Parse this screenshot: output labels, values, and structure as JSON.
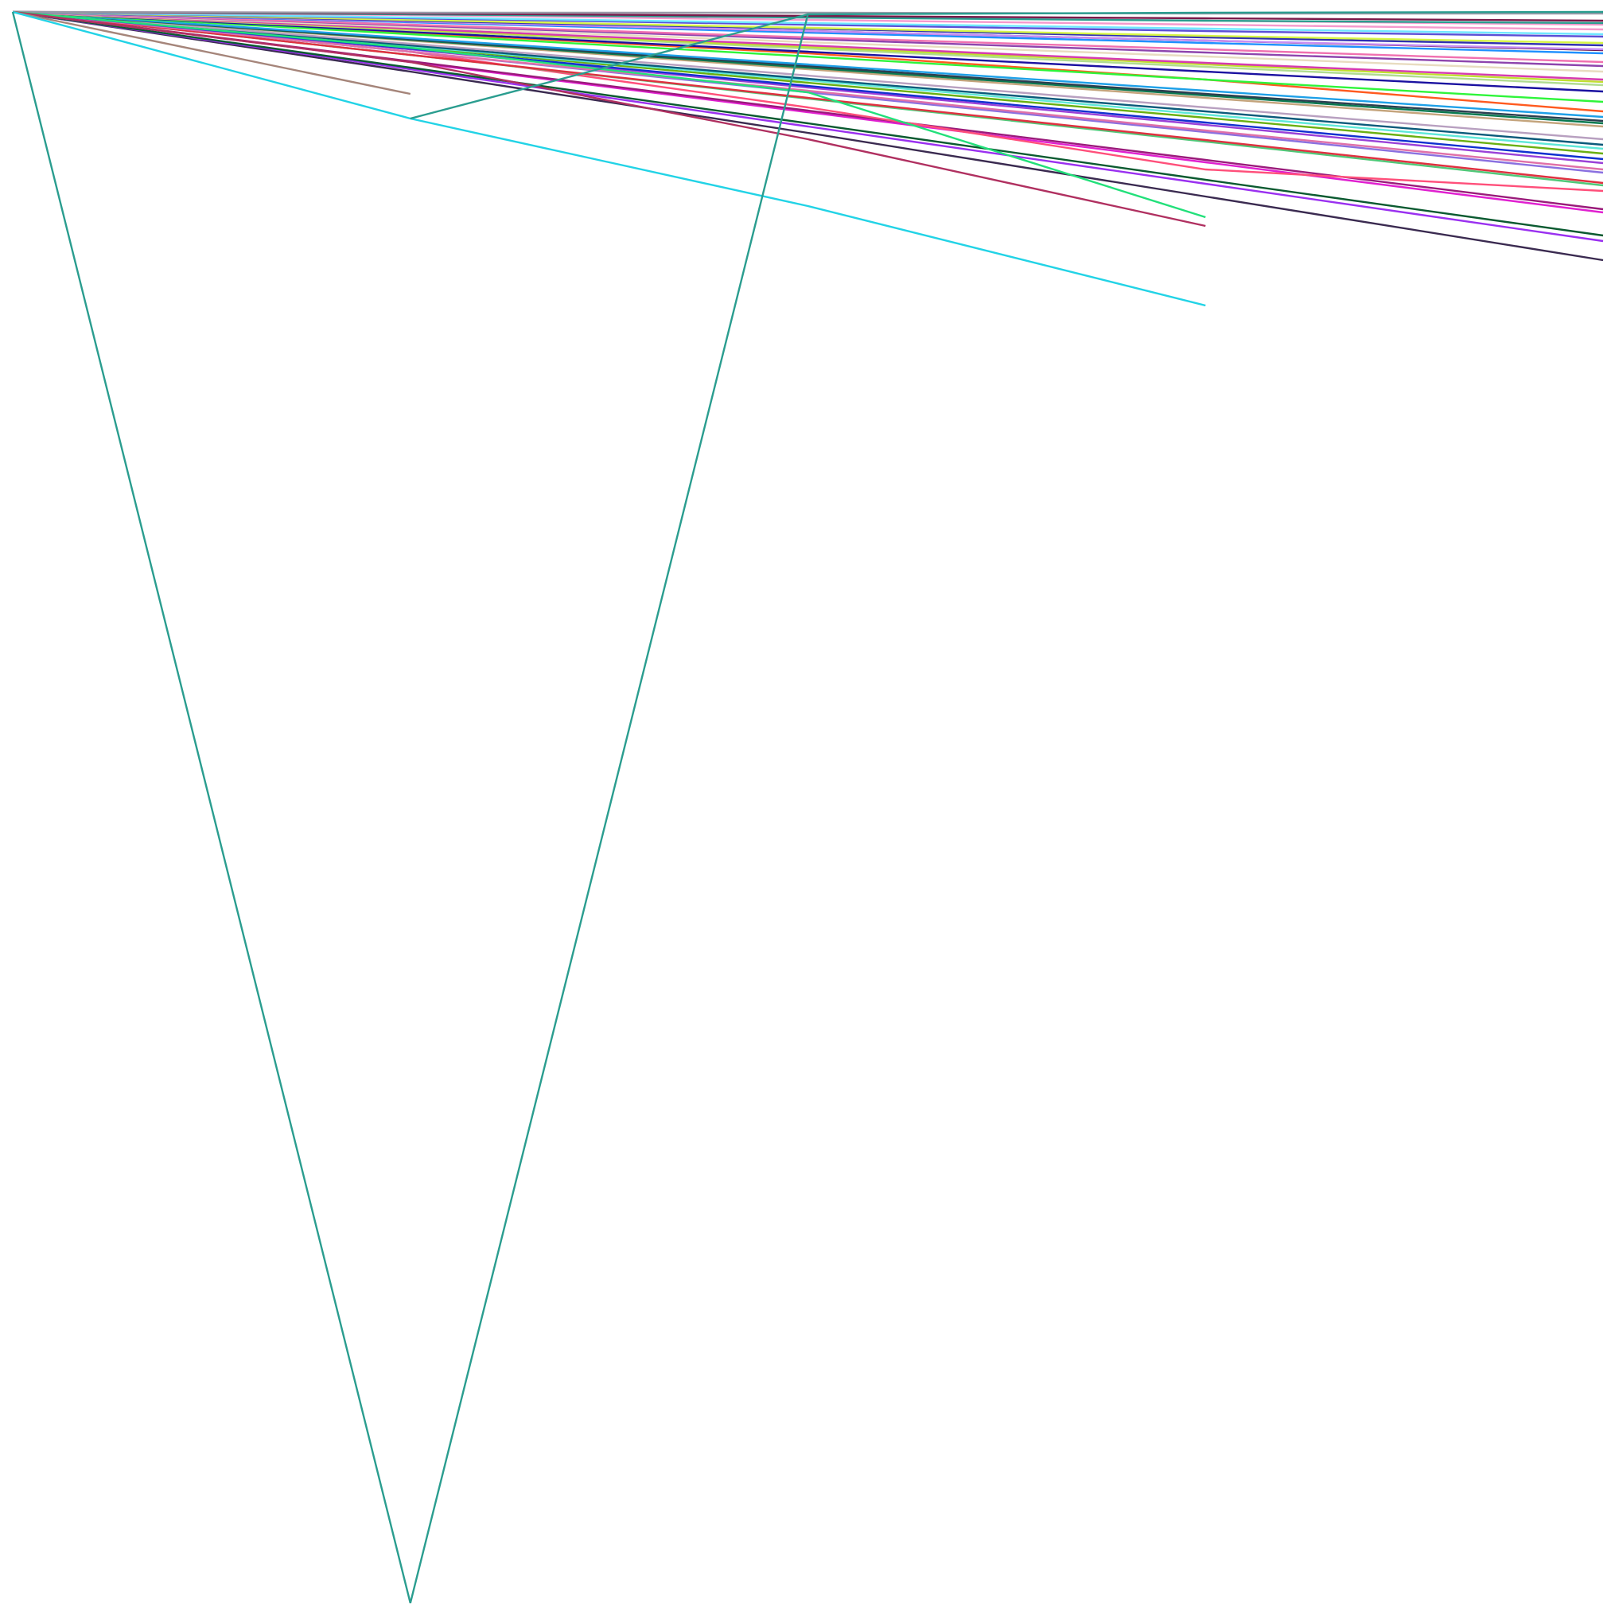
{
  "chart_data": {
    "type": "line",
    "title": "",
    "xlabel": "",
    "ylabel": "",
    "grid": false,
    "legend": "none",
    "axes_visible": false,
    "x": [
      0,
      1,
      2,
      3,
      4
    ],
    "xlim": [
      0,
      4
    ],
    "ylim": [
      -2000,
      0
    ],
    "series": [
      {
        "color": "#2a9d8f",
        "values": [
          0,
          -2000,
          -3,
          -1,
          0
        ]
      },
      {
        "color": "#2a9d8f",
        "values": [
          null,
          -134,
          -3,
          null,
          null
        ]
      },
      {
        "color": "#22d3e6",
        "values": [
          0,
          -134,
          -244,
          -369,
          null
        ]
      },
      {
        "color": "#a5857a",
        "values": [
          0,
          -103,
          null,
          null,
          null
        ]
      },
      {
        "color": "#b03060",
        "values": [
          0,
          -63,
          -160,
          -269,
          null
        ]
      },
      {
        "color": "#22e07a",
        "values": [
          0,
          -45,
          -101,
          -258,
          null
        ]
      },
      {
        "color": "#999aa8",
        "values": [
          0,
          -1,
          -1,
          -2,
          -2
        ]
      },
      {
        "color": "#7a1a4a",
        "values": [
          0,
          -2,
          -5,
          -8,
          -11
        ]
      },
      {
        "color": "#2a9d8f",
        "values": [
          0,
          -3,
          -7,
          -11,
          -14
        ]
      },
      {
        "color": "#f598cc",
        "values": [
          0,
          -1,
          -6,
          -11,
          -16
        ]
      },
      {
        "color": "#f598cc",
        "values": [
          0,
          -4,
          -10,
          -16,
          -22
        ]
      },
      {
        "color": "#6ee7ff",
        "values": [
          0,
          -7,
          -14,
          -21,
          -28
        ]
      },
      {
        "color": "#5b4fd6",
        "values": [
          0,
          -8,
          -16,
          -24,
          -31
        ]
      },
      {
        "color": "#d6f545",
        "values": [
          0,
          -10,
          -20,
          -30,
          -39
        ]
      },
      {
        "color": "#3030b0",
        "values": [
          0,
          -11,
          -21,
          -32,
          -42
        ]
      },
      {
        "color": "#c88ef5",
        "values": [
          0,
          -12,
          -24,
          -36,
          -47
        ]
      },
      {
        "color": "#6a0f4a",
        "values": [
          0,
          -12,
          -24,
          -36,
          -48
        ]
      },
      {
        "color": "#1e90ff",
        "values": [
          0,
          -13,
          -26,
          -39,
          -52
        ]
      },
      {
        "color": "#f070b0",
        "values": [
          0,
          -16,
          -32,
          -47,
          -63
        ]
      },
      {
        "color": "#8e44ad",
        "values": [
          0,
          -17,
          -34,
          -51,
          -68
        ]
      },
      {
        "color": "#e8dcc0",
        "values": [
          0,
          -19,
          -38,
          -56,
          -75
        ]
      },
      {
        "color": "#d63ab0",
        "values": [
          0,
          -21,
          -42,
          -64,
          -85
        ]
      },
      {
        "color": "#c0e030",
        "values": [
          0,
          -22,
          -44,
          -66,
          -88
        ]
      },
      {
        "color": "#b0dc90",
        "values": [
          0,
          -23,
          -46,
          -69,
          -92
        ]
      },
      {
        "color": "#1a10a0",
        "values": [
          0,
          -25,
          -50,
          -75,
          -100
        ]
      },
      {
        "color": "#2ef53a",
        "values": [
          0,
          -28,
          -56,
          -85,
          -113
        ]
      },
      {
        "color": "#ff5a1f",
        "values": [
          0,
          -26,
          -52,
          -85,
          -125
        ]
      },
      {
        "color": "#1ea0e8",
        "values": [
          0,
          -33,
          -66,
          -99,
          -132
        ]
      },
      {
        "color": "#2c3e50",
        "values": [
          0,
          -34,
          -68,
          -103,
          -137
        ]
      },
      {
        "color": "#0a7a50",
        "values": [
          0,
          -35,
          -70,
          -105,
          -140
        ]
      },
      {
        "color": "#c4a47c",
        "values": [
          0,
          -36,
          -72,
          -108,
          -144
        ]
      },
      {
        "color": "#b8a0c0",
        "values": [
          0,
          -40,
          -80,
          -120,
          -160
        ]
      },
      {
        "color": "#0a5a7a",
        "values": [
          0,
          -42,
          -84,
          -125,
          -167
        ]
      },
      {
        "color": "#5ee8d8",
        "values": [
          0,
          -43,
          -86,
          -129,
          -172
        ]
      },
      {
        "color": "#6ab010",
        "values": [
          0,
          -44,
          -89,
          -133,
          -178
        ]
      },
      {
        "color": "#1030d0",
        "values": [
          0,
          -46,
          -93,
          -139,
          -185
        ]
      },
      {
        "color": "#9a40d8",
        "values": [
          0,
          -47,
          -95,
          -142,
          -190
        ]
      },
      {
        "color": "#e070a8",
        "values": [
          0,
          -50,
          -99,
          -149,
          -198
        ]
      },
      {
        "color": "#8a70e0",
        "values": [
          0,
          -50,
          -101,
          -151,
          -202
        ]
      },
      {
        "color": "#e03040",
        "values": [
          0,
          -54,
          -108,
          -161,
          -215
        ]
      },
      {
        "color": "#50c878",
        "values": [
          0,
          -54,
          -109,
          -163,
          -218
        ]
      },
      {
        "color": "#ff4f7a",
        "values": [
          0,
          -50,
          -120,
          -198,
          -225
        ]
      },
      {
        "color": "#9a1a7a",
        "values": [
          0,
          -62,
          -124,
          -186,
          -248
        ]
      },
      {
        "color": "#e020d0",
        "values": [
          0,
          -63,
          -126,
          -189,
          -252
        ]
      },
      {
        "color": "#0a5a30",
        "values": [
          0,
          -70,
          -140,
          -211,
          -281
        ]
      },
      {
        "color": "#9a30f0",
        "values": [
          0,
          -72,
          -144,
          -216,
          -288
        ]
      },
      {
        "color": "#3a2a50",
        "values": [
          0,
          -75,
          -152,
          -232,
          -312
        ]
      }
    ]
  }
}
